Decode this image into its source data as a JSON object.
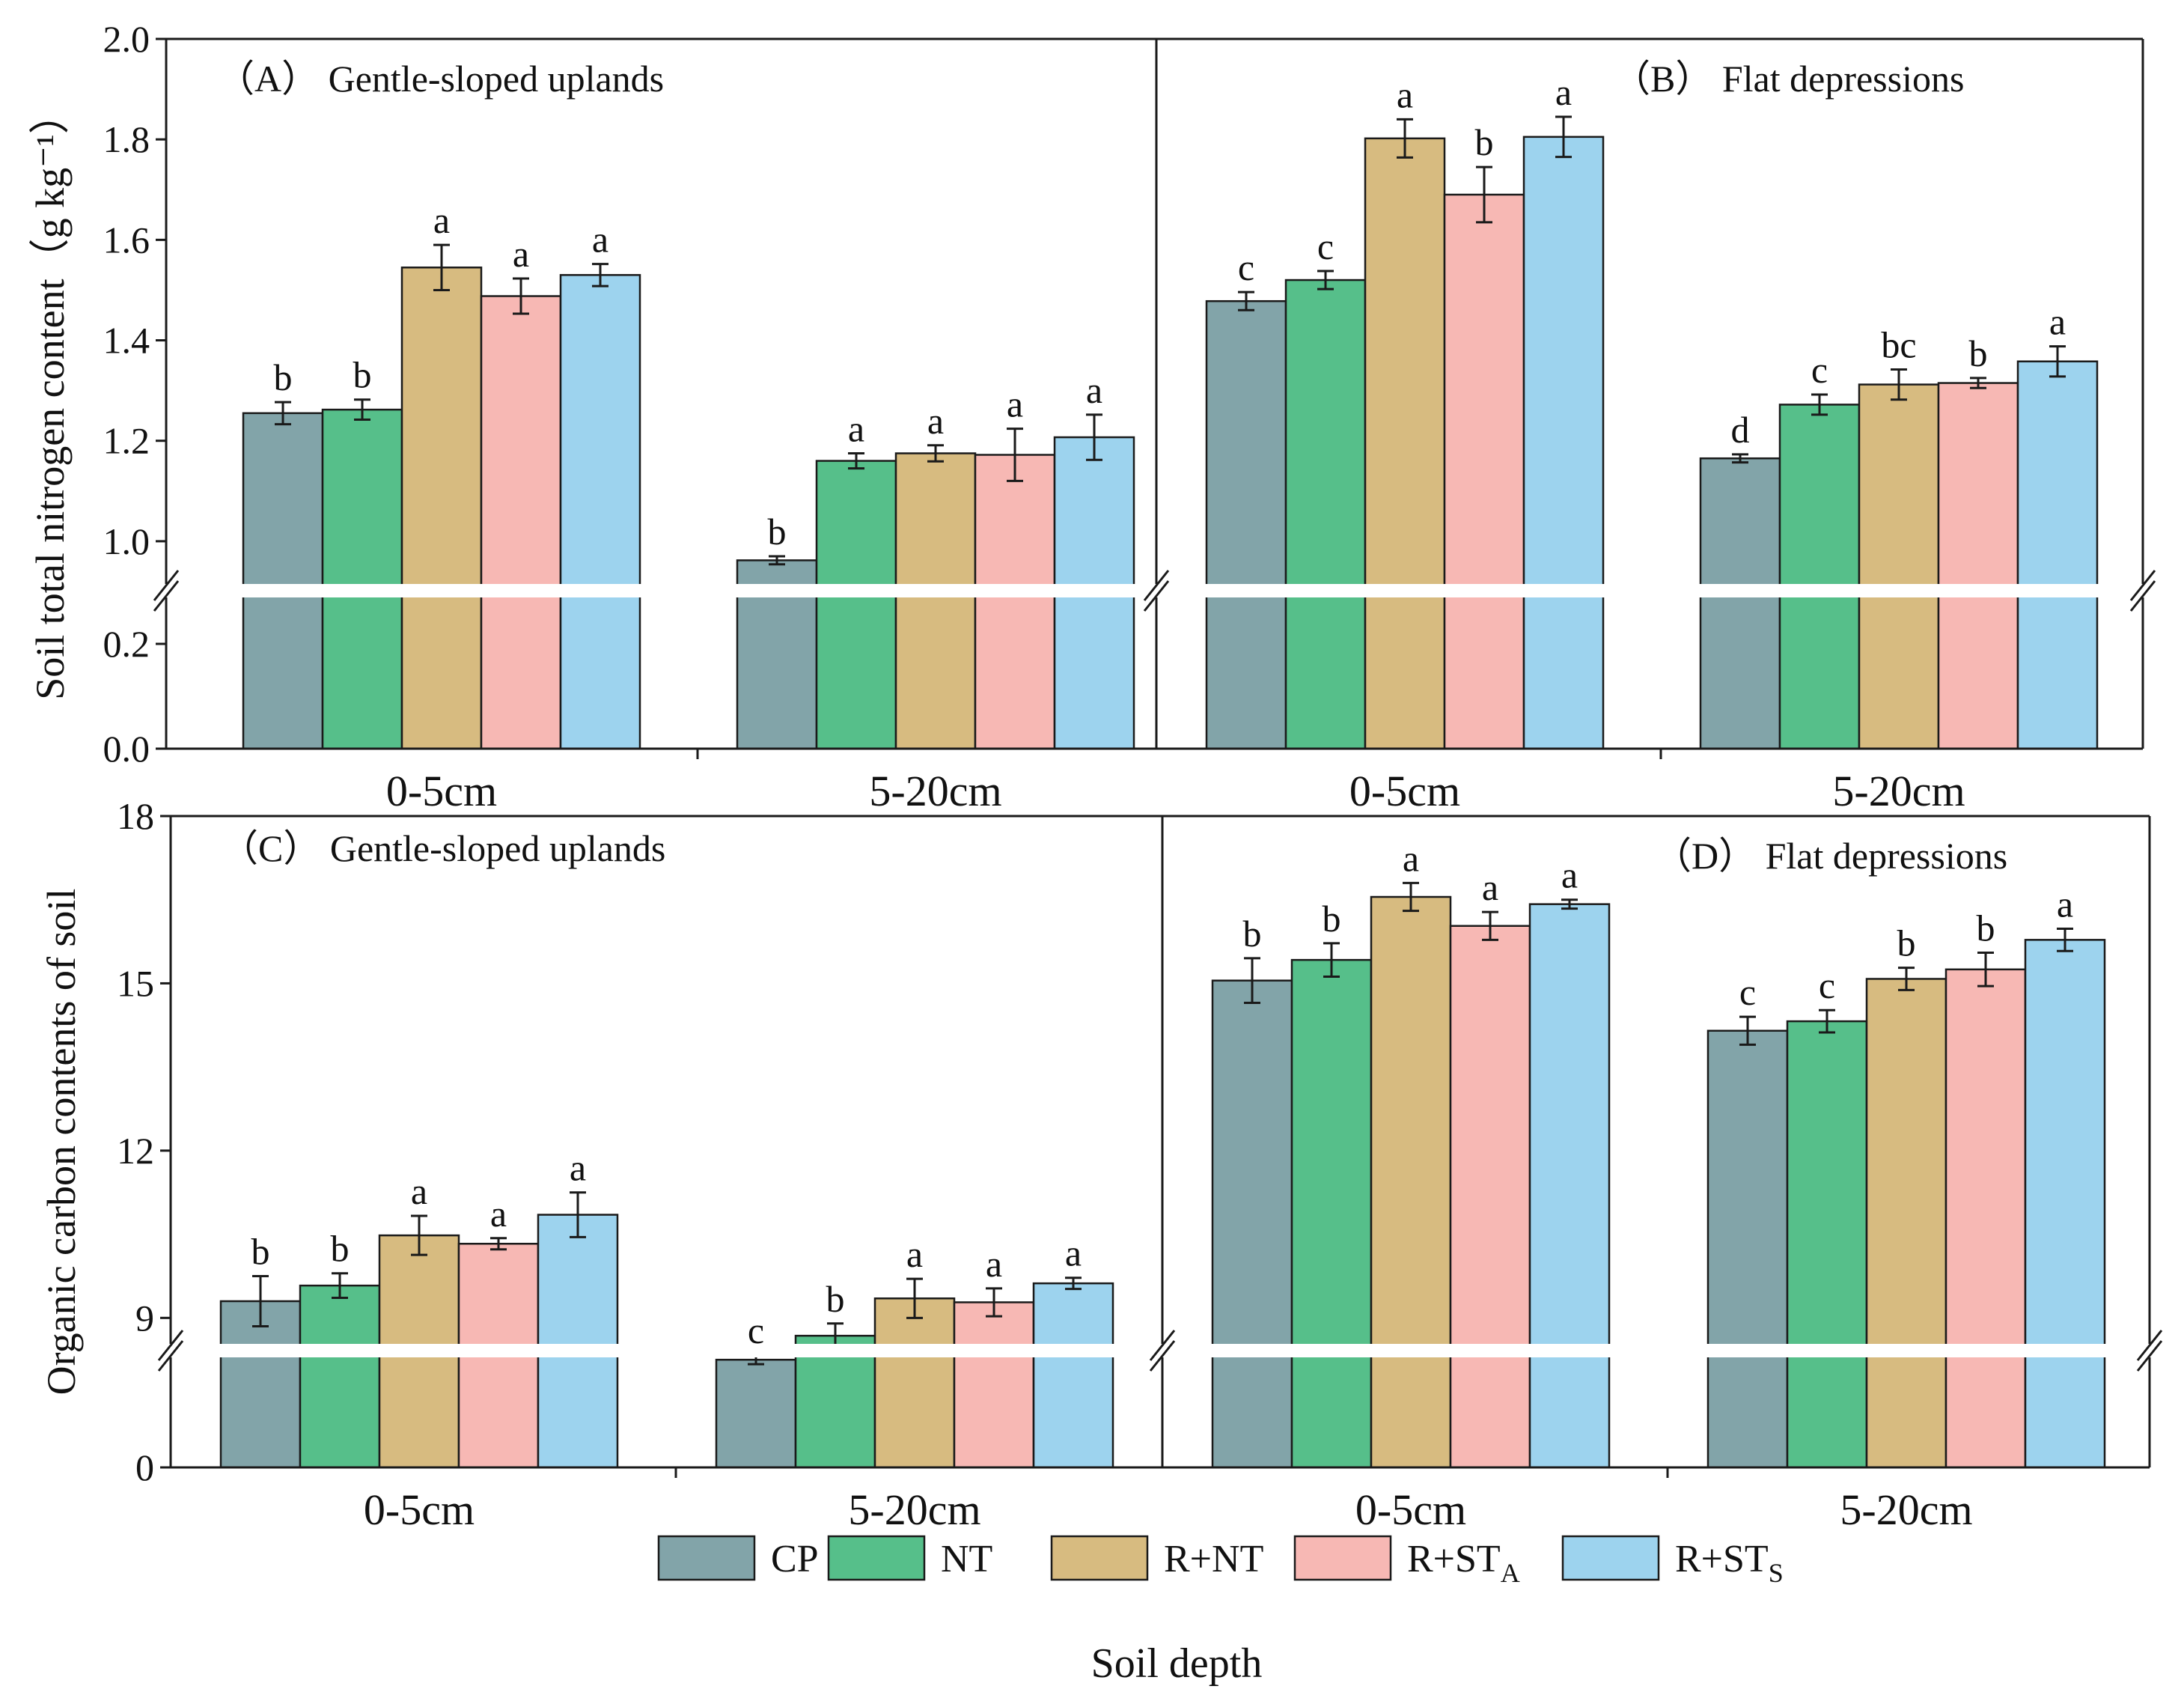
{
  "chart_data": {
    "type": "bar",
    "legend": {
      "placement": "bottom-center",
      "items": [
        {
          "name": "CP",
          "sub": "",
          "color": "#82a4a9"
        },
        {
          "name": "NT",
          "sub": "",
          "color": "#56bf8a"
        },
        {
          "name": "R+NT",
          "sub": "",
          "color": "#d7bb80"
        },
        {
          "name": "R+ST",
          "sub": "A",
          "color": "#f7b8b4"
        },
        {
          "name": "R+ST",
          "sub": "S",
          "color": "#9dd3ee"
        }
      ]
    },
    "xlabel": "Soil depth",
    "categories": [
      "0-5cm",
      "5-20cm"
    ],
    "rows": [
      {
        "ylabel": "Soil total nitrogen content（g kg⁻¹）",
        "ylim_lower": [
          0,
          0.3
        ],
        "ylim_upper": [
          0.9,
          2.0
        ],
        "yticks_lower": [
          "0.0",
          "0.2"
        ],
        "yticks_upper": [
          "1.0",
          "1.2",
          "1.4",
          "1.6",
          "1.8",
          "2.0"
        ],
        "panels": [
          {
            "title": "（A） Gentle-sloped uplands",
            "groups": [
              {
                "values": [
                  1.255,
                  1.262,
                  1.545,
                  1.488,
                  1.53
                ],
                "errors": [
                  0.022,
                  0.02,
                  0.045,
                  0.035,
                  0.022
                ],
                "letters": [
                  "b",
                  "b",
                  "a",
                  "a",
                  "a"
                ]
              },
              {
                "values": [
                  0.962,
                  1.16,
                  1.175,
                  1.172,
                  1.207
                ],
                "errors": [
                  0.008,
                  0.015,
                  0.016,
                  0.052,
                  0.045
                ],
                "letters": [
                  "b",
                  "a",
                  "a",
                  "a",
                  "a"
                ]
              }
            ]
          },
          {
            "title": "（B） Flat depressions",
            "groups": [
              {
                "values": [
                  1.478,
                  1.52,
                  1.802,
                  1.69,
                  1.805
                ],
                "errors": [
                  0.018,
                  0.018,
                  0.038,
                  0.055,
                  0.04
                ],
                "letters": [
                  "c",
                  "c",
                  "a",
                  "b",
                  "a"
                ]
              },
              {
                "values": [
                  1.165,
                  1.272,
                  1.312,
                  1.315,
                  1.358
                ],
                "errors": [
                  0.008,
                  0.02,
                  0.03,
                  0.01,
                  0.03
                ],
                "letters": [
                  "d",
                  "c",
                  "bc",
                  "b",
                  "a"
                ]
              }
            ]
          }
        ]
      },
      {
        "ylabel": "Organic carbon contents of soil",
        "ylim_lower": [
          0,
          3
        ],
        "ylim_upper": [
          8.4,
          18
        ],
        "yticks_lower": [
          "0"
        ],
        "yticks_upper": [
          "9",
          "12",
          "15",
          "18"
        ],
        "panels": [
          {
            "title": "（C） Gentle-sloped uplands",
            "groups": [
              {
                "values": [
                  9.3,
                  9.58,
                  10.48,
                  10.33,
                  10.85
                ],
                "errors": [
                  0.45,
                  0.22,
                  0.35,
                  0.1,
                  0.4
                ],
                "letters": [
                  "b",
                  "b",
                  "a",
                  "a",
                  "a"
                ]
              },
              {
                "values": [
                  8.25,
                  8.68,
                  9.35,
                  9.28,
                  9.62
                ],
                "errors": [
                  0.08,
                  0.22,
                  0.35,
                  0.25,
                  0.1
                ],
                "letters": [
                  "c",
                  "b",
                  "a",
                  "a",
                  "a"
                ]
              }
            ]
          },
          {
            "title": "（D） Flat depressions",
            "groups": [
              {
                "values": [
                  15.05,
                  15.42,
                  16.55,
                  16.03,
                  16.42
                ],
                "errors": [
                  0.4,
                  0.3,
                  0.25,
                  0.25,
                  0.08
                ],
                "letters": [
                  "b",
                  "b",
                  "a",
                  "a",
                  "a"
                ]
              },
              {
                "values": [
                  14.15,
                  14.32,
                  15.08,
                  15.25,
                  15.78
                ],
                "errors": [
                  0.25,
                  0.2,
                  0.2,
                  0.3,
                  0.2
                ],
                "letters": [
                  "c",
                  "c",
                  "b",
                  "b",
                  "a"
                ]
              }
            ]
          }
        ]
      }
    ]
  }
}
